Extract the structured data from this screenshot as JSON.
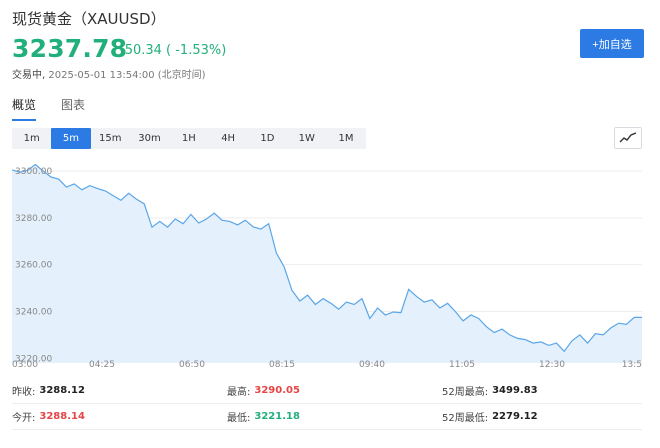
{
  "header": {
    "title": "现货黄金（XAUUSD）",
    "price": "3237.78",
    "change": "-50.34 ( -1.53%)",
    "status_label": "交易中,",
    "timestamp": "2025-05-01 13:54:00 (北京时间)"
  },
  "actions": {
    "add_watchlist": "+加自选"
  },
  "tabs": [
    {
      "label": "概览",
      "active": true
    },
    {
      "label": "图表",
      "active": false
    }
  ],
  "periods": [
    {
      "label": "1m",
      "active": false
    },
    {
      "label": "5m",
      "active": true
    },
    {
      "label": "15m",
      "active": false
    },
    {
      "label": "30m",
      "active": false
    },
    {
      "label": "1H",
      "active": false
    },
    {
      "label": "4H",
      "active": false
    },
    {
      "label": "1D",
      "active": false
    },
    {
      "label": "1W",
      "active": false
    },
    {
      "label": "1M",
      "active": false
    }
  ],
  "icons": {
    "chart_toggle": "line-chart-icon"
  },
  "colors": {
    "accent": "#2c7be5",
    "down": "#21b07b",
    "up": "#e64545",
    "area_fill": "#e4f0fb",
    "line": "#5aa6e8"
  },
  "chart_data": {
    "type": "area",
    "xticks": [
      "03:00",
      "04:25",
      "06:50",
      "08:15",
      "09:40",
      "11:05",
      "12:30",
      "13:5"
    ],
    "yticks": [
      "3300.00",
      "3280.00",
      "3260.00",
      "3240.00",
      "3220.00"
    ],
    "ylim": [
      3218,
      3306
    ],
    "x": [
      0,
      2,
      4,
      6,
      8,
      10,
      12,
      14,
      16,
      18,
      20,
      22,
      24,
      26,
      28,
      30,
      32,
      34,
      36,
      38,
      40,
      42,
      44,
      46,
      48,
      50,
      52,
      54,
      56,
      58,
      60,
      62,
      64,
      66,
      68,
      70,
      72,
      74,
      76,
      78,
      80,
      82,
      84,
      86,
      88,
      90,
      92,
      94,
      96,
      98,
      100,
      102,
      104,
      106,
      108,
      110,
      112,
      114,
      116,
      118,
      120,
      122,
      124,
      126,
      128,
      130,
      132,
      134,
      136,
      138,
      140,
      142,
      144,
      146,
      148,
      150,
      152,
      154,
      156,
      158,
      160,
      162
    ],
    "values": [
      3300.5,
      3299.5,
      3300.3,
      3302.8,
      3300.0,
      3297.5,
      3296.5,
      3293.2,
      3294.5,
      3292.0,
      3293.8,
      3292.5,
      3291.5,
      3289.5,
      3287.5,
      3290.5,
      3288.0,
      3286.0,
      3276.0,
      3278.5,
      3276.0,
      3279.5,
      3277.5,
      3281.5,
      3277.8,
      3279.5,
      3282.0,
      3279.0,
      3278.5,
      3277.0,
      3279.0,
      3276.2,
      3275.2,
      3277.5,
      3265.0,
      3259.0,
      3249.0,
      3244.5,
      3247.0,
      3243.0,
      3245.5,
      3243.5,
      3241.0,
      3244.0,
      3243.0,
      3245.5,
      3237.0,
      3241.5,
      3238.5,
      3239.8,
      3239.5,
      3249.5,
      3246.5,
      3244.0,
      3245.0,
      3241.5,
      3243.5,
      3240.0,
      3236.0,
      3238.5,
      3237.0,
      3233.5,
      3231.0,
      3232.5,
      3230.0,
      3228.5,
      3228.0,
      3226.5,
      3227.0,
      3225.5,
      3226.5,
      3223.0,
      3227.5,
      3230.0,
      3226.5,
      3230.5,
      3230.0,
      3233.0,
      3235.0,
      3234.5,
      3237.5,
      3237.5
    ]
  },
  "stats": [
    [
      {
        "label": "昨收:",
        "value": "3288.12",
        "tone": ""
      },
      {
        "label": "最高:",
        "value": "3290.05",
        "tone": "red"
      },
      {
        "label": "52周最高:",
        "value": "3499.83",
        "tone": ""
      }
    ],
    [
      {
        "label": "今开:",
        "value": "3288.14",
        "tone": "red"
      },
      {
        "label": "最低:",
        "value": "3221.18",
        "tone": "green"
      },
      {
        "label": "52周最低:",
        "value": "2279.12",
        "tone": ""
      }
    ]
  ]
}
